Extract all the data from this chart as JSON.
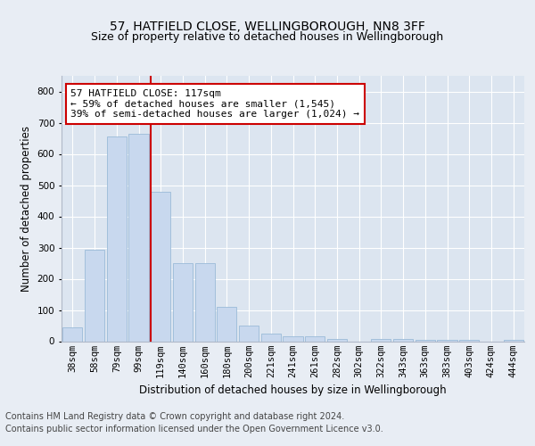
{
  "title": "57, HATFIELD CLOSE, WELLINGBOROUGH, NN8 3FF",
  "subtitle": "Size of property relative to detached houses in Wellingborough",
  "xlabel": "Distribution of detached houses by size in Wellingborough",
  "ylabel": "Number of detached properties",
  "categories": [
    "38sqm",
    "58sqm",
    "79sqm",
    "99sqm",
    "119sqm",
    "140sqm",
    "160sqm",
    "180sqm",
    "200sqm",
    "221sqm",
    "241sqm",
    "261sqm",
    "282sqm",
    "302sqm",
    "322sqm",
    "343sqm",
    "363sqm",
    "383sqm",
    "403sqm",
    "424sqm",
    "444sqm"
  ],
  "values": [
    45,
    293,
    655,
    665,
    478,
    250,
    250,
    110,
    50,
    25,
    15,
    15,
    8,
    0,
    8,
    8,
    5,
    5,
    5,
    0,
    5
  ],
  "bar_color": "#c8d8ee",
  "bar_edge_color": "#9bbbd8",
  "highlight_index": 4,
  "annotation_line1": "57 HATFIELD CLOSE: 117sqm",
  "annotation_line2": "← 59% of detached houses are smaller (1,545)",
  "annotation_line3": "39% of semi-detached houses are larger (1,024) →",
  "annotation_box_color": "#ffffff",
  "annotation_box_edge_color": "#cc0000",
  "ylim": [
    0,
    850
  ],
  "yticks": [
    0,
    100,
    200,
    300,
    400,
    500,
    600,
    700,
    800
  ],
  "background_color": "#e8edf4",
  "plot_bg_color": "#dce5f0",
  "footer_line1": "Contains HM Land Registry data © Crown copyright and database right 2024.",
  "footer_line2": "Contains public sector information licensed under the Open Government Licence v3.0.",
  "grid_color": "#ffffff",
  "title_fontsize": 10,
  "subtitle_fontsize": 9,
  "axis_label_fontsize": 8.5,
  "tick_fontsize": 7.5,
  "annotation_fontsize": 8,
  "footer_fontsize": 7
}
